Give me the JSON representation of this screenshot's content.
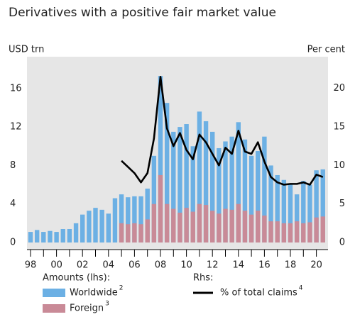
{
  "chart_data": {
    "type": "bar_line",
    "title": "Derivatives with a positive fair market value",
    "y_label": "USD trn",
    "y2_label": "Per cent",
    "legend_groups": [
      "Amounts (lhs):",
      "Rhs:"
    ],
    "categories": [
      "98",
      null,
      null,
      null,
      "00",
      null,
      null,
      null,
      "02",
      null,
      null,
      null,
      "04",
      null,
      null,
      null,
      "06",
      null,
      null,
      null,
      "08",
      null,
      null,
      null,
      "10",
      null,
      null,
      null,
      "12",
      null,
      null,
      null,
      "14",
      null,
      null,
      null,
      "16",
      null,
      null,
      null,
      "18",
      null,
      null,
      null,
      "20",
      null
    ],
    "series": [
      {
        "name": "Worldwide",
        "note": "2",
        "color": "#6cb0e4",
        "kind": "bar",
        "values": [
          1.1,
          1.3,
          1.1,
          1.2,
          1.1,
          1.4,
          1.4,
          2.0,
          2.9,
          3.3,
          3.6,
          3.4,
          3.0,
          4.6,
          5.0,
          4.7,
          4.8,
          4.8,
          5.6,
          9.0,
          17.3,
          14.5,
          11.5,
          12.0,
          12.3,
          10.0,
          13.6,
          12.6,
          11.5,
          9.8,
          10.5,
          11.0,
          12.5,
          10.7,
          9.0,
          9.5,
          11.0,
          8.0,
          7.0,
          6.5,
          6.0,
          5.0,
          6.4,
          6.0,
          7.5,
          7.6
        ]
      },
      {
        "name": "Foreign",
        "note": "3",
        "color": "#c98a97",
        "kind": "bar",
        "values": [
          null,
          null,
          null,
          null,
          null,
          null,
          null,
          null,
          null,
          null,
          null,
          null,
          null,
          null,
          2.0,
          1.9,
          2.0,
          1.9,
          2.4,
          4.0,
          7.0,
          4.0,
          3.5,
          3.1,
          3.6,
          3.2,
          4.0,
          3.9,
          3.3,
          3.0,
          3.5,
          3.4,
          4.0,
          3.3,
          2.9,
          3.3,
          2.8,
          2.2,
          2.2,
          2.0,
          2.0,
          2.2,
          2.0,
          2.1,
          2.6,
          2.7
        ]
      },
      {
        "name": "% of total claims",
        "note": "4",
        "color": "#000000",
        "kind": "line",
        "axis": "y2",
        "values": [
          null,
          null,
          null,
          null,
          null,
          null,
          null,
          null,
          null,
          null,
          null,
          null,
          null,
          null,
          10.6,
          9.8,
          9.0,
          7.8,
          9.0,
          13.5,
          21.5,
          14.8,
          12.5,
          14.2,
          12.0,
          10.8,
          14.0,
          13.0,
          11.5,
          10.0,
          12.3,
          11.5,
          14.5,
          11.8,
          11.5,
          13.0,
          10.5,
          8.5,
          7.8,
          7.5,
          7.6,
          7.6,
          7.8,
          7.5,
          8.8,
          8.5
        ]
      }
    ],
    "ylim": [
      0,
      19.3
    ],
    "yticks": [
      0,
      4,
      8,
      12,
      16
    ],
    "y2lim": [
      0,
      24.1
    ],
    "y2ticks": [
      0,
      5,
      10,
      15,
      20
    ]
  }
}
